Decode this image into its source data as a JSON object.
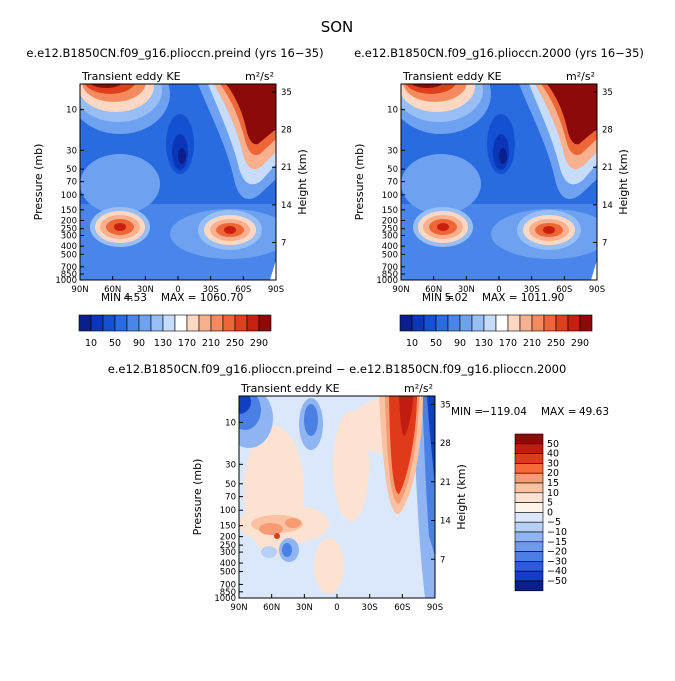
{
  "figure": {
    "season": "SON"
  },
  "chart_data": [
    {
      "id": "panel-preind",
      "type": "heatmap",
      "title": "e.e12.B1850CN.f09_g16.plioccn.preind (yrs 16−35)",
      "variable": "Transient eddy KE",
      "units": "m²/s²",
      "xlabel": "",
      "ylabel": "Pressure (mb)",
      "y2label": "Height (km)",
      "x_ticks": [
        "90N",
        "60N",
        "30N",
        "0",
        "30S",
        "60S",
        "90S"
      ],
      "y_ticks": [
        "10",
        "30",
        "50",
        "70",
        "100",
        "150",
        "200",
        "250",
        "300",
        "400",
        "500",
        "700",
        "850",
        "1000"
      ],
      "y_tick_values": [
        10,
        30,
        50,
        70,
        100,
        150,
        200,
        250,
        300,
        400,
        500,
        700,
        850,
        1000
      ],
      "y2_ticks": [
        "35",
        "28",
        "21",
        "14",
        "7"
      ],
      "ylim": [
        1000,
        5
      ],
      "min_label": "MIN =",
      "min_value": "4.53",
      "max_label": "MAX = 1060.70",
      "levels": [
        10,
        30,
        50,
        70,
        90,
        110,
        130,
        150,
        170,
        190,
        210,
        230,
        250,
        270,
        290
      ]
    },
    {
      "id": "panel-2000",
      "type": "heatmap",
      "title": "e.e12.B1850CN.f09_g16.plioccn.2000 (yrs 16−35)",
      "variable": "Transient eddy KE",
      "units": "m²/s²",
      "xlabel": "",
      "ylabel": "Pressure (mb)",
      "y2label": "Height (km)",
      "x_ticks": [
        "90N",
        "60N",
        "30N",
        "0",
        "30S",
        "60S",
        "90S"
      ],
      "y_ticks": [
        "10",
        "30",
        "50",
        "70",
        "100",
        "150",
        "200",
        "250",
        "300",
        "400",
        "500",
        "700",
        "850",
        "1000"
      ],
      "y_tick_values": [
        10,
        30,
        50,
        70,
        100,
        150,
        200,
        250,
        300,
        400,
        500,
        700,
        850,
        1000
      ],
      "y2_ticks": [
        "35",
        "28",
        "21",
        "14",
        "7"
      ],
      "ylim": [
        1000,
        5
      ],
      "min_label": "MIN =",
      "min_value": "5.02",
      "max_label": "MAX = 1011.90",
      "levels": [
        10,
        30,
        50,
        70,
        90,
        110,
        130,
        150,
        170,
        190,
        210,
        230,
        250,
        270,
        290
      ]
    },
    {
      "id": "panel-diff",
      "type": "heatmap",
      "title": "e.e12.B1850CN.f09_g16.plioccn.preind − e.e12.B1850CN.f09_g16.plioccn.2000",
      "variable": "Transient eddy KE",
      "units": "m²/s²",
      "xlabel": "",
      "ylabel": "Pressure (mb)",
      "y2label": "Height (km)",
      "x_ticks": [
        "90N",
        "60N",
        "30N",
        "0",
        "30S",
        "60S",
        "90S"
      ],
      "y_ticks": [
        "10",
        "30",
        "50",
        "70",
        "100",
        "150",
        "200",
        "250",
        "300",
        "400",
        "500",
        "700",
        "850",
        "1000"
      ],
      "y_tick_values": [
        10,
        30,
        50,
        70,
        100,
        150,
        200,
        250,
        300,
        400,
        500,
        700,
        850,
        1000
      ],
      "y2_ticks": [
        "35",
        "28",
        "21",
        "14",
        "7"
      ],
      "ylim": [
        1000,
        5
      ],
      "min_label": "MIN =",
      "min_value": "−119.04",
      "max_label": "MAX =",
      "max_value": "49.63",
      "levels": [
        50,
        40,
        30,
        20,
        15,
        10,
        5,
        0,
        -5,
        -10,
        -15,
        -20,
        -30,
        -40,
        -50
      ],
      "level_labels": [
        "50",
        "40",
        "30",
        "20",
        "15",
        "10",
        "5",
        "0",
        "−5",
        "−10",
        "−15",
        "−20",
        "−30",
        "−40",
        "−50"
      ]
    }
  ],
  "colorbar_top": {
    "labels": [
      "10",
      "50",
      "90",
      "130",
      "170",
      "210",
      "250",
      "290"
    ],
    "colors": [
      "#0a1e8c",
      "#0b36b8",
      "#1450d2",
      "#2a6be0",
      "#4a86ea",
      "#6ea2f0",
      "#98bff5",
      "#c7dcfa",
      "#ffffff",
      "#fcd8c4",
      "#f9b08e",
      "#f58a5e",
      "#ee6637",
      "#e03f1e",
      "#c8200f",
      "#8c0a0a"
    ]
  },
  "colorbar_diff": {
    "colors": [
      "#8c0a0a",
      "#c01c10",
      "#e03a1a",
      "#f46a3a",
      "#f89a72",
      "#fbc2a2",
      "#fde2d2",
      "#fff3ea",
      "#dbe8fb",
      "#b7d0f7",
      "#8fb4f2",
      "#6d9aec",
      "#4a7fe4",
      "#2a5ed8",
      "#123fc0",
      "#0a1e8c"
    ]
  }
}
